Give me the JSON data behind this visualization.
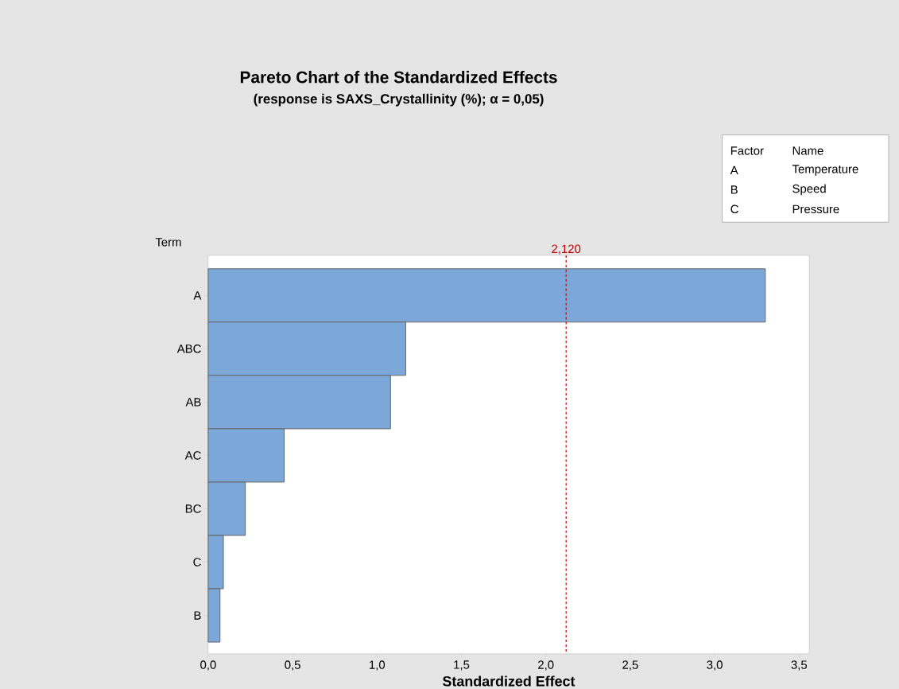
{
  "chart_data": {
    "type": "bar",
    "orientation": "horizontal",
    "title": "Pareto Chart of the Standardized Effects",
    "subtitle": "(response is SAXS_Crystallinity (%); α = 0,05)",
    "xlabel": "Standardized Effect",
    "ylabel": "Term",
    "categories": [
      "A",
      "ABC",
      "AB",
      "AC",
      "BC",
      "C",
      "B"
    ],
    "values": [
      3.3,
      1.17,
      1.08,
      0.45,
      0.22,
      0.09,
      0.07
    ],
    "color": "#7ba7d9",
    "xlim": [
      0,
      3.56
    ],
    "xticks": [
      {
        "value": 0,
        "label": "0,0"
      },
      {
        "value": 0.5,
        "label": "0,5"
      },
      {
        "value": 1,
        "label": "1,0"
      },
      {
        "value": 1.5,
        "label": "1,5"
      },
      {
        "value": 2,
        "label": "2,0"
      },
      {
        "value": 2.5,
        "label": "2,5"
      },
      {
        "value": 3,
        "label": "3,0"
      },
      {
        "value": 3.5,
        "label": "3,5"
      }
    ],
    "ref_lines": [
      {
        "axis": "x",
        "value": 2.12,
        "label": "2,120",
        "color": "#c00000",
        "line_style": "dashed"
      }
    ],
    "annotations": [
      "Factor",
      "Name",
      "A",
      "Temperature",
      "B",
      "Speed",
      "C",
      "Pressure"
    ],
    "grid": false
  }
}
